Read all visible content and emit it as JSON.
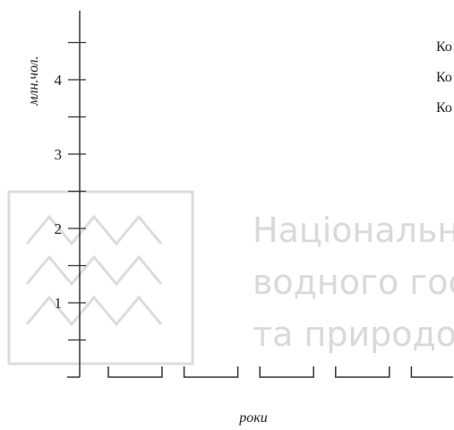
{
  "watermark": {
    "lines": [
      "Національн",
      "водного гос",
      "та природо"
    ]
  },
  "chart_data": {
    "type": "bar",
    "ylabel": "млн.чол.",
    "xlabel": "роки",
    "ylim": [
      0,
      5
    ],
    "y_ticks": [
      {
        "value": 0.5,
        "label": ""
      },
      {
        "value": 1,
        "label": "1"
      },
      {
        "value": 1.5,
        "label": ""
      },
      {
        "value": 2,
        "label": "2"
      },
      {
        "value": 2.5,
        "label": ""
      },
      {
        "value": 3,
        "label": "3"
      },
      {
        "value": 3.5,
        "label": ""
      },
      {
        "value": 4,
        "label": "4"
      },
      {
        "value": 4.5,
        "label": ""
      }
    ],
    "category_count": 5,
    "legend": {
      "placement": "top-right",
      "entries": [
        "Ко",
        "Ко",
        "Ко"
      ]
    },
    "grid": false
  }
}
